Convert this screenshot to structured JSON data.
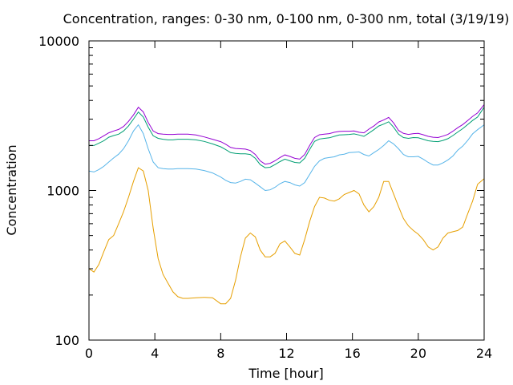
{
  "chart_data": {
    "type": "line",
    "title": "Concentration, ranges: 0-30 nm, 0-100 nm, 0-300 nm, total (3/19/19)",
    "xlabel": "Time [hour]",
    "ylabel": "Concentration",
    "xlim": [
      0,
      24
    ],
    "ylim": [
      100,
      10000
    ],
    "yscale": "log",
    "xticks": [
      0,
      4,
      8,
      12,
      16,
      20,
      24
    ],
    "yticks": [
      100,
      1000,
      10000
    ],
    "xtick_labels": [
      "0",
      "4",
      "8",
      "12",
      "16",
      "20",
      "24"
    ],
    "ytick_labels": [
      "100",
      "1000",
      "10000"
    ],
    "grid": false,
    "legend": false,
    "series": [
      {
        "color": "#e69f00",
        "x": [
          0,
          0.3,
          0.6,
          0.9,
          1.2,
          1.5,
          1.8,
          2.1,
          2.4,
          2.7,
          3.0,
          3.3,
          3.6,
          3.9,
          4.2,
          4.5,
          4.8,
          5.1,
          5.4,
          5.7,
          6.0,
          6.5,
          7.0,
          7.5,
          8.0,
          8.3,
          8.6,
          8.9,
          9.2,
          9.5,
          9.8,
          10.1,
          10.4,
          10.7,
          11.0,
          11.3,
          11.6,
          11.9,
          12.2,
          12.5,
          12.8,
          13.1,
          13.4,
          13.7,
          14.0,
          14.3,
          14.6,
          14.9,
          15.2,
          15.5,
          15.8,
          16.1,
          16.4,
          16.7,
          17.0,
          17.3,
          17.6,
          17.9,
          18.2,
          18.5,
          18.8,
          19.1,
          19.4,
          19.7,
          20.0,
          20.3,
          20.6,
          20.9,
          21.2,
          21.5,
          21.8,
          22.1,
          22.4,
          22.7,
          23.0,
          23.3,
          23.6,
          24.0
        ],
        "y": [
          300,
          285,
          320,
          390,
          470,
          500,
          600,
          720,
          900,
          1150,
          1420,
          1350,
          1000,
          560,
          350,
          275,
          240,
          210,
          195,
          190,
          190,
          192,
          193,
          192,
          175,
          175,
          190,
          250,
          360,
          480,
          520,
          490,
          400,
          360,
          360,
          380,
          440,
          460,
          420,
          380,
          370,
          470,
          620,
          780,
          900,
          890,
          860,
          850,
          880,
          940,
          970,
          1000,
          950,
          800,
          720,
          780,
          900,
          1150,
          1150,
          950,
          780,
          650,
          580,
          540,
          510,
          470,
          420,
          400,
          420,
          480,
          520,
          530,
          540,
          570,
          700,
          850,
          1100,
          1200
        ]
      },
      {
        "color": "#56b4e9",
        "x": [
          0,
          0.3,
          0.6,
          0.9,
          1.2,
          1.5,
          1.8,
          2.1,
          2.4,
          2.7,
          3.0,
          3.3,
          3.6,
          3.9,
          4.2,
          4.5,
          4.8,
          5.1,
          5.4,
          5.7,
          6.0,
          6.5,
          7.0,
          7.5,
          8.0,
          8.3,
          8.6,
          8.9,
          9.2,
          9.5,
          9.8,
          10.1,
          10.4,
          10.7,
          11.0,
          11.3,
          11.6,
          11.9,
          12.2,
          12.5,
          12.8,
          13.1,
          13.4,
          13.7,
          14.0,
          14.3,
          14.6,
          14.9,
          15.2,
          15.5,
          15.8,
          16.1,
          16.4,
          16.7,
          17.0,
          17.3,
          17.6,
          17.9,
          18.2,
          18.5,
          18.8,
          19.1,
          19.4,
          19.7,
          20.0,
          20.3,
          20.6,
          20.9,
          21.2,
          21.5,
          21.8,
          22.1,
          22.4,
          22.7,
          23.0,
          23.3,
          23.6,
          24.0
        ],
        "y": [
          1350,
          1330,
          1380,
          1450,
          1550,
          1650,
          1750,
          1900,
          2150,
          2500,
          2750,
          2400,
          1900,
          1550,
          1420,
          1400,
          1390,
          1390,
          1400,
          1400,
          1400,
          1390,
          1360,
          1310,
          1230,
          1170,
          1130,
          1120,
          1150,
          1190,
          1180,
          1120,
          1060,
          1000,
          1010,
          1050,
          1110,
          1150,
          1130,
          1090,
          1070,
          1130,
          1280,
          1450,
          1580,
          1640,
          1660,
          1680,
          1730,
          1750,
          1790,
          1800,
          1810,
          1740,
          1700,
          1790,
          1880,
          2000,
          2150,
          2050,
          1900,
          1740,
          1680,
          1680,
          1690,
          1620,
          1540,
          1480,
          1480,
          1530,
          1600,
          1700,
          1860,
          1980,
          2160,
          2390,
          2550,
          2750
        ]
      },
      {
        "color": "#009e73",
        "x": [
          0,
          0.3,
          0.6,
          0.9,
          1.2,
          1.5,
          1.8,
          2.1,
          2.4,
          2.7,
          3.0,
          3.3,
          3.6,
          3.9,
          4.2,
          4.5,
          4.8,
          5.1,
          5.4,
          5.7,
          6.0,
          6.5,
          7.0,
          7.5,
          8.0,
          8.3,
          8.6,
          8.9,
          9.2,
          9.5,
          9.8,
          10.1,
          10.4,
          10.7,
          11.0,
          11.3,
          11.6,
          11.9,
          12.2,
          12.5,
          12.8,
          13.1,
          13.4,
          13.7,
          14.0,
          14.3,
          14.6,
          14.9,
          15.2,
          15.5,
          15.8,
          16.1,
          16.4,
          16.7,
          17.0,
          17.3,
          17.6,
          17.9,
          18.2,
          18.5,
          18.8,
          19.1,
          19.4,
          19.7,
          20.0,
          20.3,
          20.6,
          20.9,
          21.2,
          21.5,
          21.8,
          22.1,
          22.4,
          22.7,
          23.0,
          23.3,
          23.6,
          24.0
        ],
        "y": [
          2000,
          2000,
          2070,
          2150,
          2270,
          2330,
          2380,
          2500,
          2700,
          3000,
          3350,
          3100,
          2650,
          2320,
          2230,
          2200,
          2180,
          2180,
          2200,
          2200,
          2200,
          2180,
          2130,
          2050,
          1960,
          1880,
          1790,
          1770,
          1760,
          1760,
          1740,
          1640,
          1490,
          1420,
          1430,
          1490,
          1560,
          1620,
          1580,
          1540,
          1530,
          1640,
          1880,
          2130,
          2210,
          2230,
          2250,
          2300,
          2350,
          2360,
          2370,
          2390,
          2350,
          2300,
          2420,
          2550,
          2700,
          2780,
          2880,
          2650,
          2380,
          2260,
          2230,
          2260,
          2250,
          2200,
          2150,
          2130,
          2120,
          2160,
          2220,
          2330,
          2460,
          2590,
          2760,
          2940,
          3100,
          3600
        ]
      },
      {
        "color": "#9400d3",
        "x": [
          0,
          0.3,
          0.6,
          0.9,
          1.2,
          1.5,
          1.8,
          2.1,
          2.4,
          2.7,
          3.0,
          3.3,
          3.6,
          3.9,
          4.2,
          4.5,
          4.8,
          5.1,
          5.4,
          5.7,
          6.0,
          6.5,
          7.0,
          7.5,
          8.0,
          8.3,
          8.6,
          8.9,
          9.2,
          9.5,
          9.8,
          10.1,
          10.4,
          10.7,
          11.0,
          11.3,
          11.6,
          11.9,
          12.2,
          12.5,
          12.8,
          13.1,
          13.4,
          13.7,
          14.0,
          14.3,
          14.6,
          14.9,
          15.2,
          15.5,
          15.8,
          16.1,
          16.4,
          16.7,
          17.0,
          17.3,
          17.6,
          17.9,
          18.2,
          18.5,
          18.8,
          19.1,
          19.4,
          19.7,
          20.0,
          20.3,
          20.6,
          20.9,
          21.2,
          21.5,
          21.8,
          22.1,
          22.4,
          22.7,
          23.0,
          23.3,
          23.6,
          24.0
        ],
        "y": [
          2150,
          2150,
          2220,
          2320,
          2430,
          2500,
          2560,
          2680,
          2900,
          3200,
          3600,
          3350,
          2850,
          2500,
          2400,
          2380,
          2370,
          2370,
          2380,
          2380,
          2380,
          2350,
          2280,
          2200,
          2120,
          2040,
          1940,
          1910,
          1900,
          1890,
          1850,
          1740,
          1580,
          1500,
          1520,
          1580,
          1660,
          1730,
          1690,
          1640,
          1620,
          1740,
          2000,
          2260,
          2360,
          2380,
          2400,
          2450,
          2480,
          2490,
          2490,
          2500,
          2450,
          2430,
          2570,
          2700,
          2870,
          2960,
          3080,
          2830,
          2520,
          2410,
          2370,
          2400,
          2410,
          2360,
          2300,
          2270,
          2260,
          2310,
          2370,
          2490,
          2630,
          2760,
          2940,
          3130,
          3300,
          3750
        ]
      }
    ]
  }
}
